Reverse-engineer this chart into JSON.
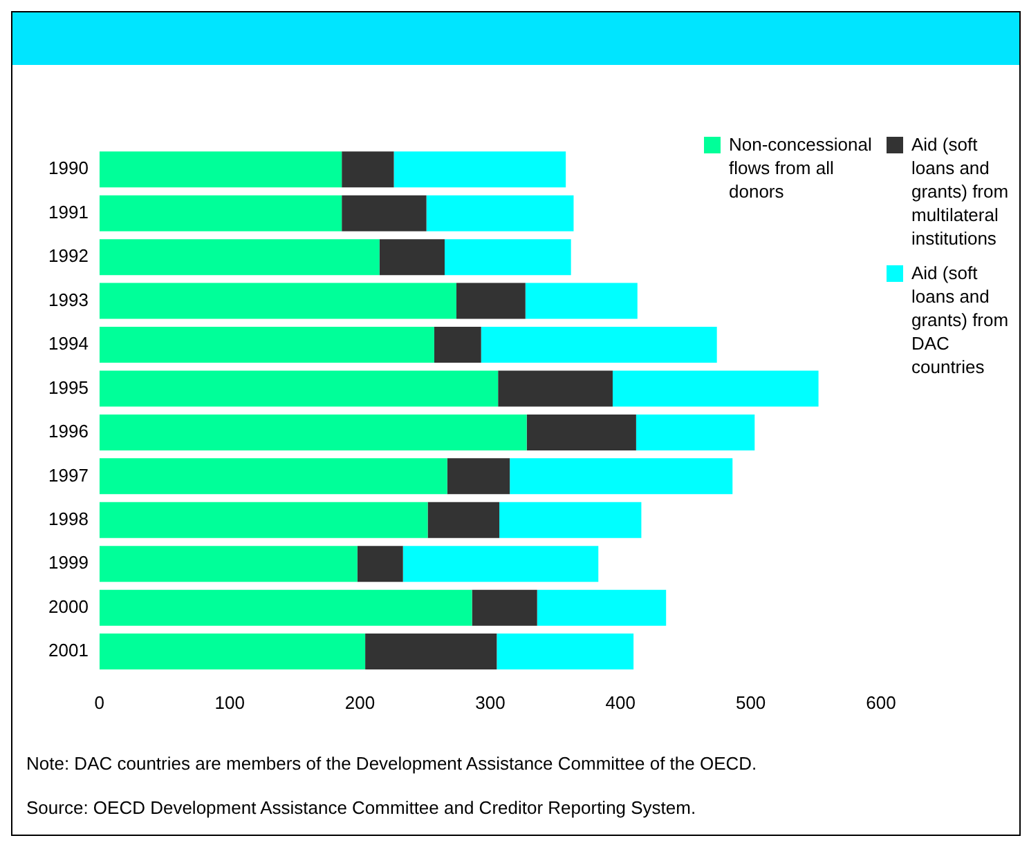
{
  "chart_data": {
    "type": "bar",
    "orientation": "horizontal",
    "stacked": true,
    "categories": [
      "1990",
      "1991",
      "1992",
      "1993",
      "1994",
      "1995",
      "1996",
      "1997",
      "1998",
      "1999",
      "2000",
      "2001"
    ],
    "series": [
      {
        "name": "Non-concessional flows from all donors",
        "color": "#00ff99",
        "values": [
          186,
          186,
          215,
          274,
          257,
          306,
          328,
          267,
          252,
          198,
          286,
          204
        ]
      },
      {
        "name": "Aid (soft loans and grants) from multilateral institutions",
        "color": "#333333",
        "values": [
          40,
          65,
          50,
          53,
          36,
          88,
          84,
          48,
          55,
          35,
          50,
          101
        ]
      },
      {
        "name": "Aid (soft loans and grants) from DAC countries",
        "color": "#00ffff",
        "values": [
          132,
          113,
          97,
          86,
          181,
          158,
          91,
          171,
          109,
          150,
          99,
          105
        ]
      }
    ],
    "xlim": [
      0,
      600
    ],
    "xticks": [
      0,
      100,
      200,
      300,
      400,
      500,
      600
    ],
    "grid": false,
    "legend": "top right",
    "annotations": [
      "Note: DAC countries are members of the Development Assistance Committee of the OECD.",
      "Source: OECD Development Assistance Committee and Creditor Reporting System."
    ]
  }
}
